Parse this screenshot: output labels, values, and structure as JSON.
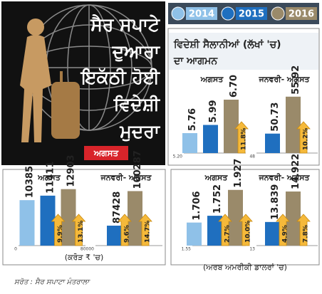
{
  "title_lines": [
    "ਸੈਰ ਸਪਾਟੇ",
    "ਦੁਆਰਾ",
    "ਇਕੱਠੀ ਹੋਈ",
    "ਵਿਦੇਸ਼ੀ",
    "ਮੁਦਰਾ"
  ],
  "tag": "ਅਗਸਤ",
  "legend": [
    {
      "name": "2014",
      "color": "#8fc1e8"
    },
    {
      "name": "2015",
      "color": "#1f6fbf"
    },
    {
      "name": "2016",
      "color": "#9a8a6a"
    }
  ],
  "tourists_heading": [
    "ਵਿਦੇਸ਼ੀ ਸੈਲਾਨੀਆਂ (ਲੱਖਾਂ 'ਚ)",
    "ਦਾ ਆਗਮਨ"
  ],
  "inr_unit": "(ਕਰੋੜ ₹ 'ਚ)",
  "usd_unit": "(ਅਰਬ ਅਮਰੀਕੀ ਡਾਲਰਾਂ 'ਚ)",
  "source": "ਸਰੋਤ : ਸੈਰ ਸਪਾਟਾ ਮੰਤਰਾਲਾ",
  "chart_data": [
    {
      "type": "bar",
      "title": "ਅਗਸਤ",
      "values": [
        5.76,
        5.99,
        6.7
      ],
      "value_labels": [
        "5.76",
        "5.99",
        "6.70"
      ],
      "colors": [
        "#8fc1e8",
        "#1f6fbf",
        "#9a8a6a"
      ],
      "ylim": [
        5.2,
        7.0
      ],
      "yticks": [
        {
          "value": 5.2,
          "label": "5.20"
        }
      ],
      "growth": [
        11.8
      ],
      "growth_labels": [
        "11.8%"
      ]
    },
    {
      "type": "bar",
      "title": "ਜਨਵਰੀ- ਅਗਸਤ",
      "values": [
        50.73,
        55.92
      ],
      "colors": [
        "#1f6fbf",
        "#9a8a6a"
      ],
      "ylim": [
        48,
        57
      ],
      "yticks": [
        48
      ],
      "growth": [
        10.2
      ],
      "growth_labels": [
        "10.2%"
      ]
    },
    {
      "type": "bar",
      "title": "ਅਗਸਤ",
      "values": [
        10385,
        11411,
        12903
      ],
      "colors": [
        "#8fc1e8",
        "#1f6fbf",
        "#9a8a6a"
      ],
      "ylim": [
        0,
        13500
      ],
      "yticks": [
        0
      ],
      "growth": [
        9.9,
        13.1
      ],
      "growth_labels": [
        "9.9%",
        "13.1%"
      ]
    },
    {
      "type": "bar",
      "title": "ਜਨਵਰੀ- ਅਗਸਤ",
      "values": [
        87428,
        100287
      ],
      "colors": [
        "#1f6fbf",
        "#9a8a6a"
      ],
      "ylim": [
        80000,
        102000
      ],
      "yticks": [
        80000
      ],
      "growth": [
        9.6,
        14.7
      ],
      "growth_labels": [
        "9.6%",
        "14.7%"
      ]
    },
    {
      "type": "bar",
      "title": "ਅਗਸਤ",
      "values": [
        1.706,
        1.752,
        1.927
      ],
      "colors": [
        "#8fc1e8",
        "#1f6fbf",
        "#9a8a6a"
      ],
      "ylim": [
        1.55,
        1.95
      ],
      "yticks": [
        1.55
      ],
      "growth": [
        2.7,
        10.0
      ],
      "growth_labels": [
        "2.7%",
        "10.0%"
      ]
    },
    {
      "type": "bar",
      "title": "ਜਨਵਰੀ- ਅਗਸਤ",
      "values": [
        13.839,
        14.922
      ],
      "colors": [
        "#1f6fbf",
        "#9a8a6a"
      ],
      "ylim": [
        13,
        15.1
      ],
      "yticks": [
        13
      ],
      "growth": [
        4.9,
        7.8
      ],
      "growth_labels": [
        "4.9%",
        "7.8%"
      ]
    }
  ]
}
